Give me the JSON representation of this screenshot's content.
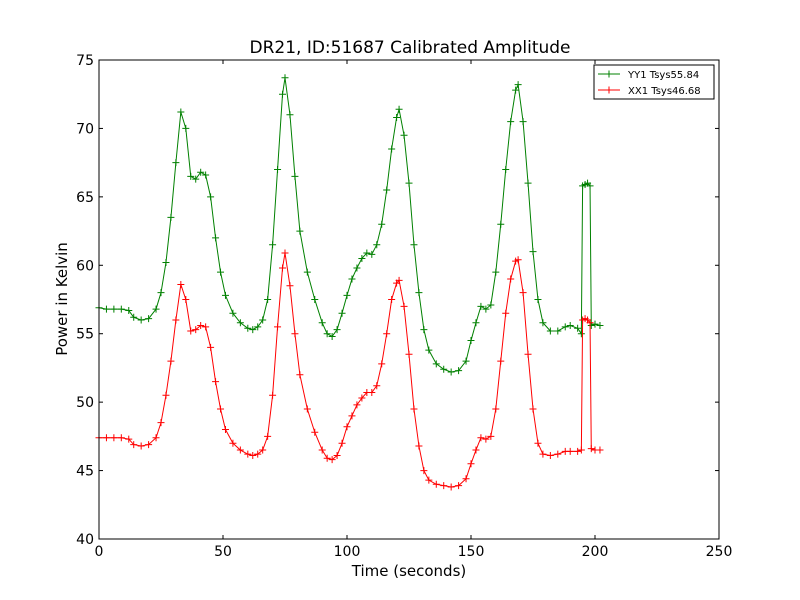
{
  "chart_data": {
    "type": "line",
    "title": "DR21, ID:51687 Calibrated Amplitude",
    "xlabel": "Time (seconds)",
    "ylabel": "Power in Kelvin",
    "xlim": [
      0,
      250
    ],
    "ylim": [
      40,
      75
    ],
    "xticks": [
      0,
      50,
      100,
      150,
      200,
      250
    ],
    "yticks": [
      40,
      45,
      50,
      55,
      60,
      65,
      70,
      75
    ],
    "grid": false,
    "legend_position": "top-right",
    "marker": "+",
    "series": [
      {
        "name": "YY1 Tsys55.84",
        "color": "#008000",
        "points": [
          [
            0,
            56.9
          ],
          [
            3,
            56.8
          ],
          [
            6,
            56.8
          ],
          [
            9,
            56.8
          ],
          [
            12,
            56.7
          ],
          [
            14,
            56.2
          ],
          [
            17,
            56.0
          ],
          [
            20,
            56.1
          ],
          [
            23,
            56.8
          ],
          [
            25,
            58.0
          ],
          [
            27,
            60.2
          ],
          [
            29,
            63.5
          ],
          [
            31,
            67.5
          ],
          [
            33,
            71.2
          ],
          [
            35,
            70.0
          ],
          [
            37,
            66.5
          ],
          [
            39,
            66.3
          ],
          [
            41,
            66.8
          ],
          [
            43,
            66.6
          ],
          [
            45,
            65.0
          ],
          [
            47,
            62.0
          ],
          [
            49,
            59.5
          ],
          [
            51,
            57.8
          ],
          [
            54,
            56.5
          ],
          [
            57,
            55.8
          ],
          [
            60,
            55.4
          ],
          [
            62,
            55.3
          ],
          [
            64,
            55.5
          ],
          [
            66,
            56.0
          ],
          [
            68,
            57.5
          ],
          [
            70,
            61.5
          ],
          [
            72,
            67.0
          ],
          [
            74,
            72.5
          ],
          [
            75,
            73.7
          ],
          [
            77,
            71.0
          ],
          [
            79,
            66.5
          ],
          [
            81,
            62.5
          ],
          [
            84,
            59.5
          ],
          [
            87,
            57.5
          ],
          [
            90,
            55.8
          ],
          [
            92,
            55.0
          ],
          [
            94,
            54.8
          ],
          [
            96,
            55.3
          ],
          [
            98,
            56.5
          ],
          [
            100,
            57.8
          ],
          [
            102,
            59.0
          ],
          [
            104,
            59.8
          ],
          [
            106,
            60.5
          ],
          [
            108,
            60.9
          ],
          [
            110,
            60.8
          ],
          [
            112,
            61.5
          ],
          [
            114,
            63.0
          ],
          [
            116,
            65.5
          ],
          [
            118,
            68.5
          ],
          [
            120,
            70.8
          ],
          [
            121,
            71.4
          ],
          [
            123,
            69.5
          ],
          [
            125,
            66.0
          ],
          [
            127,
            61.5
          ],
          [
            129,
            58.0
          ],
          [
            131,
            55.3
          ],
          [
            133,
            53.8
          ],
          [
            136,
            52.8
          ],
          [
            139,
            52.4
          ],
          [
            142,
            52.2
          ],
          [
            145,
            52.3
          ],
          [
            148,
            53.0
          ],
          [
            150,
            54.5
          ],
          [
            152,
            55.8
          ],
          [
            154,
            57.0
          ],
          [
            156,
            56.8
          ],
          [
            158,
            57.1
          ],
          [
            160,
            59.5
          ],
          [
            162,
            63.0
          ],
          [
            164,
            67.0
          ],
          [
            166,
            70.5
          ],
          [
            168,
            72.8
          ],
          [
            169,
            73.2
          ],
          [
            171,
            70.5
          ],
          [
            173,
            66.0
          ],
          [
            175,
            61.0
          ],
          [
            177,
            57.5
          ],
          [
            179,
            55.8
          ],
          [
            182,
            55.2
          ],
          [
            185,
            55.2
          ],
          [
            188,
            55.5
          ],
          [
            190,
            55.6
          ],
          [
            193,
            55.4
          ],
          [
            194.5,
            55.0
          ],
          [
            195,
            65.8
          ],
          [
            196,
            65.9
          ],
          [
            197,
            66.0
          ],
          [
            198,
            65.8
          ],
          [
            198.5,
            55.6
          ],
          [
            200,
            55.7
          ],
          [
            202,
            55.6
          ]
        ]
      },
      {
        "name": "XX1 Tsys46.68",
        "color": "#ff0000",
        "points": [
          [
            0,
            47.4
          ],
          [
            3,
            47.4
          ],
          [
            6,
            47.4
          ],
          [
            9,
            47.4
          ],
          [
            12,
            47.3
          ],
          [
            14,
            46.9
          ],
          [
            17,
            46.8
          ],
          [
            20,
            46.9
          ],
          [
            23,
            47.4
          ],
          [
            25,
            48.5
          ],
          [
            27,
            50.5
          ],
          [
            29,
            53.0
          ],
          [
            31,
            56.0
          ],
          [
            33,
            58.6
          ],
          [
            35,
            57.5
          ],
          [
            37,
            55.2
          ],
          [
            39,
            55.3
          ],
          [
            41,
            55.6
          ],
          [
            43,
            55.5
          ],
          [
            45,
            54.0
          ],
          [
            47,
            51.5
          ],
          [
            49,
            49.5
          ],
          [
            51,
            48.0
          ],
          [
            54,
            47.0
          ],
          [
            57,
            46.5
          ],
          [
            60,
            46.2
          ],
          [
            62,
            46.1
          ],
          [
            64,
            46.2
          ],
          [
            66,
            46.5
          ],
          [
            68,
            47.5
          ],
          [
            70,
            50.5
          ],
          [
            72,
            55.5
          ],
          [
            74,
            59.8
          ],
          [
            75,
            60.9
          ],
          [
            77,
            58.5
          ],
          [
            79,
            55.0
          ],
          [
            81,
            52.0
          ],
          [
            84,
            49.5
          ],
          [
            87,
            47.8
          ],
          [
            90,
            46.5
          ],
          [
            92,
            45.9
          ],
          [
            94,
            45.8
          ],
          [
            96,
            46.1
          ],
          [
            98,
            47.0
          ],
          [
            100,
            48.2
          ],
          [
            102,
            49.0
          ],
          [
            104,
            49.8
          ],
          [
            106,
            50.3
          ],
          [
            108,
            50.7
          ],
          [
            110,
            50.7
          ],
          [
            112,
            51.2
          ],
          [
            114,
            52.8
          ],
          [
            116,
            55.0
          ],
          [
            118,
            57.5
          ],
          [
            120,
            58.7
          ],
          [
            121,
            58.9
          ],
          [
            123,
            57.0
          ],
          [
            125,
            53.5
          ],
          [
            127,
            49.5
          ],
          [
            129,
            46.8
          ],
          [
            131,
            45.0
          ],
          [
            133,
            44.3
          ],
          [
            136,
            44.0
          ],
          [
            139,
            43.9
          ],
          [
            142,
            43.8
          ],
          [
            145,
            43.9
          ],
          [
            148,
            44.4
          ],
          [
            150,
            45.5
          ],
          [
            152,
            46.5
          ],
          [
            154,
            47.4
          ],
          [
            156,
            47.3
          ],
          [
            158,
            47.5
          ],
          [
            160,
            49.5
          ],
          [
            162,
            53.0
          ],
          [
            164,
            56.5
          ],
          [
            166,
            59.0
          ],
          [
            168,
            60.3
          ],
          [
            169,
            60.4
          ],
          [
            171,
            58.0
          ],
          [
            173,
            53.5
          ],
          [
            175,
            49.5
          ],
          [
            177,
            47.0
          ],
          [
            179,
            46.2
          ],
          [
            182,
            46.1
          ],
          [
            185,
            46.2
          ],
          [
            188,
            46.4
          ],
          [
            190,
            46.4
          ],
          [
            193,
            46.4
          ],
          [
            194.5,
            46.5
          ],
          [
            195,
            56.0
          ],
          [
            196,
            56.1
          ],
          [
            197,
            56.0
          ],
          [
            198,
            55.8
          ],
          [
            198.5,
            46.6
          ],
          [
            200,
            46.5
          ],
          [
            202,
            46.5
          ]
        ]
      }
    ]
  }
}
